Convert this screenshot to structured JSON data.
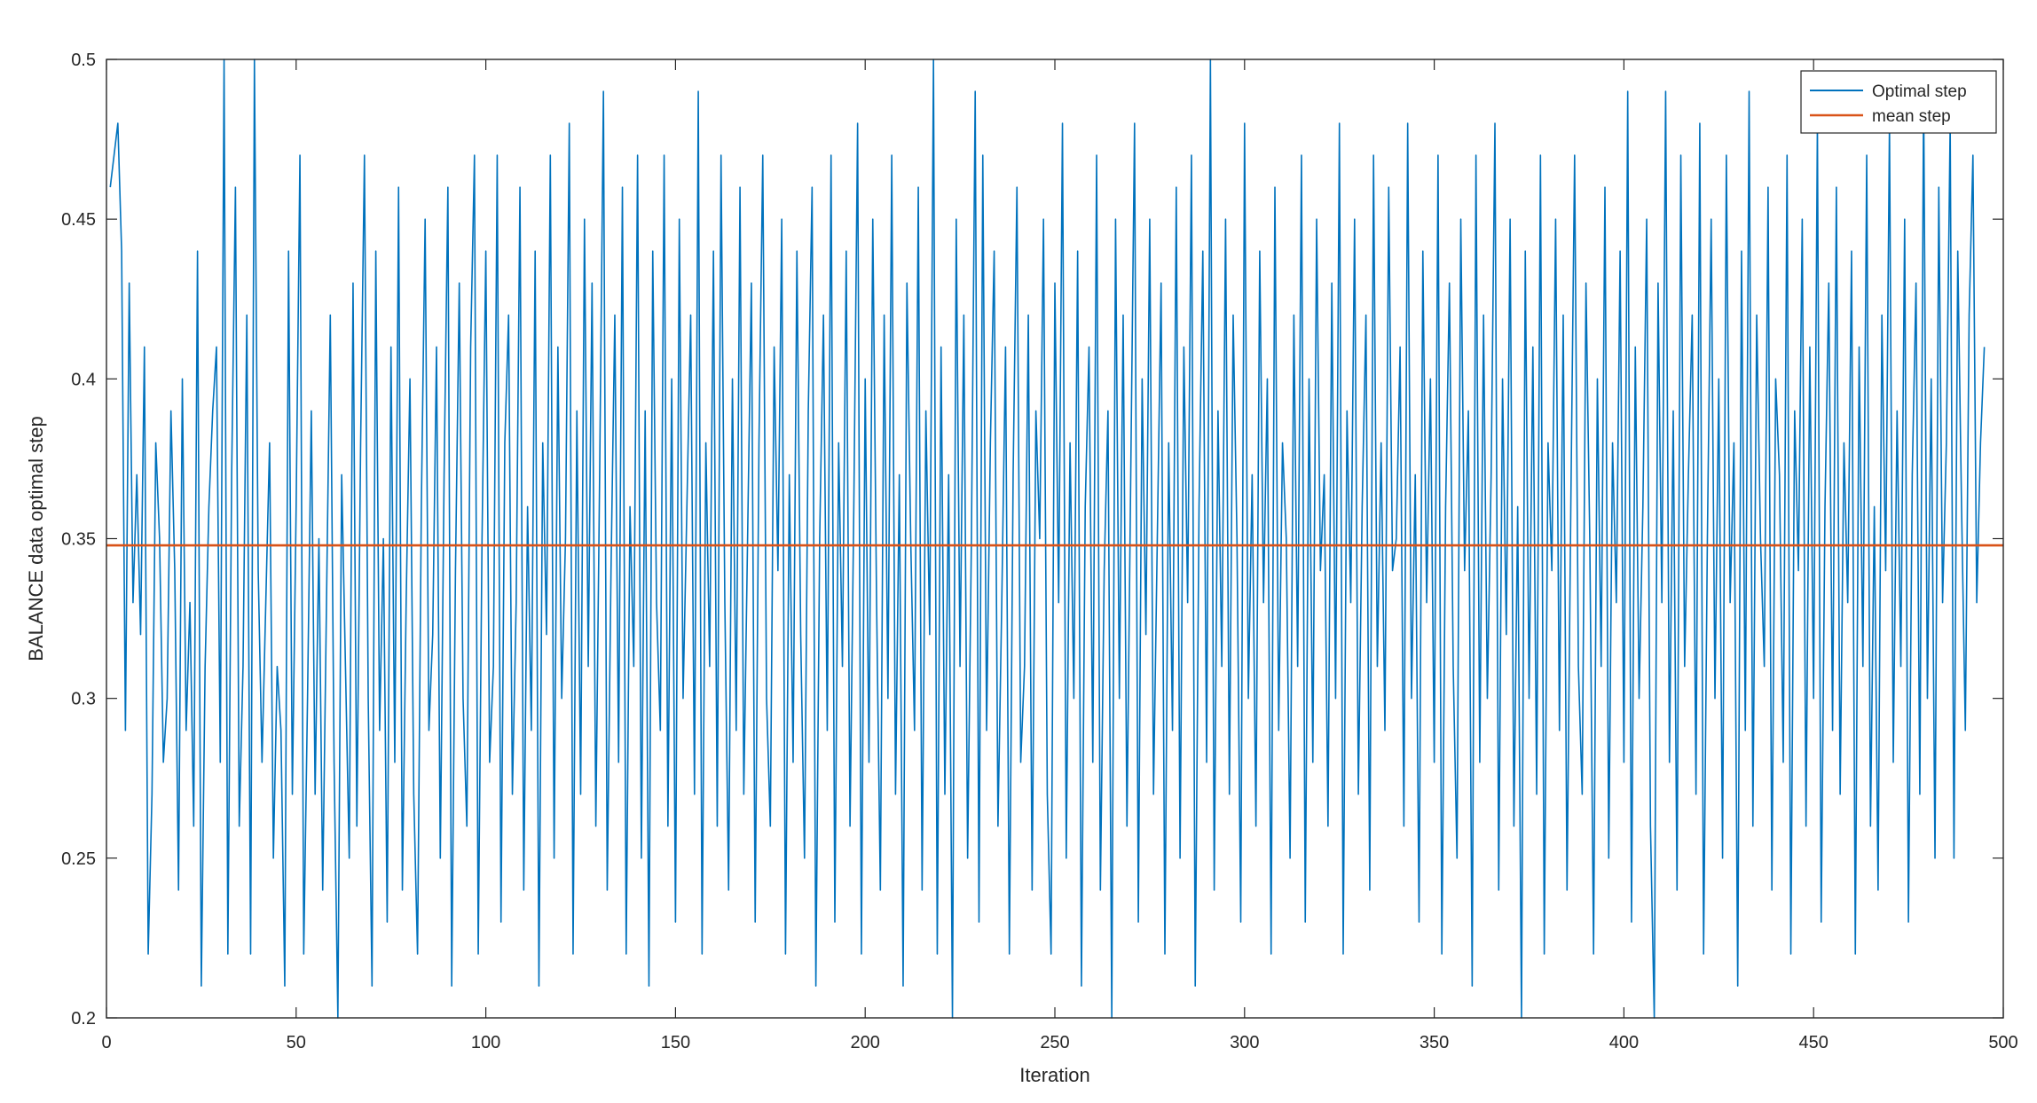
{
  "chart_data": {
    "type": "line",
    "title": "",
    "xlabel": "Iteration",
    "ylabel": "BALANCE data optimal step",
    "xlim": [
      0,
      500
    ],
    "ylim": [
      0.2,
      0.5
    ],
    "xticks": [
      0,
      50,
      100,
      150,
      200,
      250,
      300,
      350,
      400,
      450,
      500
    ],
    "yticks": [
      0.2,
      0.25,
      0.3,
      0.35,
      0.4,
      0.45,
      0.5
    ],
    "xtick_labels": [
      "0",
      "50",
      "100",
      "150",
      "200",
      "250",
      "300",
      "350",
      "400",
      "450",
      "500"
    ],
    "ytick_labels": [
      "0.2",
      "0.25",
      "0.3",
      "0.35",
      "0.4",
      "0.45",
      "0.5"
    ],
    "grid": false,
    "legend_position": "top-right",
    "series": [
      {
        "name": "Optimal step",
        "color": "#0072BD",
        "x_start": 1,
        "x_step": 1,
        "values": [
          0.46,
          0.47,
          0.48,
          0.44,
          0.29,
          0.43,
          0.33,
          0.37,
          0.32,
          0.41,
          0.22,
          0.27,
          0.38,
          0.35,
          0.28,
          0.3,
          0.39,
          0.34,
          0.24,
          0.4,
          0.29,
          0.33,
          0.26,
          0.44,
          0.21,
          0.31,
          0.36,
          0.39,
          0.41,
          0.28,
          0.5,
          0.22,
          0.37,
          0.46,
          0.26,
          0.31,
          0.42,
          0.22,
          0.5,
          0.34,
          0.28,
          0.33,
          0.38,
          0.25,
          0.31,
          0.29,
          0.21,
          0.44,
          0.27,
          0.36,
          0.47,
          0.22,
          0.3,
          0.39,
          0.27,
          0.35,
          0.24,
          0.33,
          0.42,
          0.28,
          0.2,
          0.37,
          0.31,
          0.25,
          0.43,
          0.26,
          0.38,
          0.47,
          0.3,
          0.21,
          0.44,
          0.29,
          0.35,
          0.23,
          0.41,
          0.28,
          0.46,
          0.24,
          0.33,
          0.4,
          0.27,
          0.22,
          0.36,
          0.45,
          0.29,
          0.32,
          0.41,
          0.25,
          0.37,
          0.46,
          0.21,
          0.34,
          0.43,
          0.3,
          0.26,
          0.41,
          0.47,
          0.22,
          0.35,
          0.44,
          0.28,
          0.31,
          0.47,
          0.23,
          0.38,
          0.42,
          0.27,
          0.33,
          0.46,
          0.24,
          0.36,
          0.29,
          0.44,
          0.21,
          0.38,
          0.32,
          0.47,
          0.25,
          0.41,
          0.3,
          0.35,
          0.48,
          0.22,
          0.39,
          0.27,
          0.45,
          0.31,
          0.43,
          0.26,
          0.37,
          0.49,
          0.24,
          0.34,
          0.42,
          0.28,
          0.46,
          0.22,
          0.36,
          0.31,
          0.47,
          0.25,
          0.39,
          0.21,
          0.44,
          0.33,
          0.29,
          0.47,
          0.26,
          0.4,
          0.23,
          0.45,
          0.3,
          0.36,
          0.42,
          0.27,
          0.49,
          0.22,
          0.38,
          0.31,
          0.44,
          0.26,
          0.47,
          0.33,
          0.24,
          0.4,
          0.29,
          0.46,
          0.27,
          0.35,
          0.43,
          0.23,
          0.38,
          0.47,
          0.3,
          0.26,
          0.41,
          0.34,
          0.45,
          0.22,
          0.37,
          0.28,
          0.44,
          0.32,
          0.25,
          0.39,
          0.46,
          0.21,
          0.35,
          0.42,
          0.29,
          0.47,
          0.23,
          0.38,
          0.31,
          0.44,
          0.26,
          0.36,
          0.48,
          0.22,
          0.4,
          0.28,
          0.45,
          0.33,
          0.24,
          0.42,
          0.3,
          0.47,
          0.27,
          0.37,
          0.21,
          0.43,
          0.35,
          0.29,
          0.46,
          0.24,
          0.39,
          0.32,
          0.5,
          0.22,
          0.41,
          0.27,
          0.37,
          0.2,
          0.45,
          0.31,
          0.42,
          0.25,
          0.35,
          0.49,
          0.23,
          0.47,
          0.29,
          0.38,
          0.44,
          0.26,
          0.33,
          0.41,
          0.22,
          0.37,
          0.46,
          0.28,
          0.31,
          0.42,
          0.24,
          0.39,
          0.35,
          0.45,
          0.27,
          0.22,
          0.43,
          0.33,
          0.48,
          0.25,
          0.38,
          0.3,
          0.44,
          0.21,
          0.36,
          0.41,
          0.28,
          0.47,
          0.24,
          0.34,
          0.39,
          0.2,
          0.45,
          0.3,
          0.42,
          0.26,
          0.37,
          0.48,
          0.23,
          0.4,
          0.32,
          0.45,
          0.27,
          0.35,
          0.43,
          0.22,
          0.38,
          0.29,
          0.46,
          0.25,
          0.41,
          0.33,
          0.47,
          0.21,
          0.36,
          0.44,
          0.28,
          0.5,
          0.24,
          0.39,
          0.31,
          0.45,
          0.27,
          0.42,
          0.35,
          0.23,
          0.48,
          0.3,
          0.37,
          0.26,
          0.44,
          0.33,
          0.4,
          0.22,
          0.46,
          0.29,
          0.38,
          0.35,
          0.25,
          0.42,
          0.31,
          0.47,
          0.23,
          0.4,
          0.28,
          0.45,
          0.34,
          0.37,
          0.26,
          0.43,
          0.3,
          0.48,
          0.22,
          0.39,
          0.33,
          0.45,
          0.27,
          0.36,
          0.42,
          0.24,
          0.47,
          0.31,
          0.38,
          0.29,
          0.46,
          0.34,
          0.35,
          0.41,
          0.26,
          0.48,
          0.3,
          0.37,
          0.23,
          0.44,
          0.33,
          0.4,
          0.28,
          0.47,
          0.22,
          0.36,
          0.43,
          0.31,
          0.25,
          0.45,
          0.34,
          0.39,
          0.21,
          0.47,
          0.28,
          0.42,
          0.3,
          0.37,
          0.48,
          0.24,
          0.4,
          0.32,
          0.45,
          0.26,
          0.36,
          0.2,
          0.44,
          0.3,
          0.41,
          0.27,
          0.47,
          0.22,
          0.38,
          0.34,
          0.45,
          0.29,
          0.42,
          0.24,
          0.36,
          0.47,
          0.31,
          0.27,
          0.43,
          0.35,
          0.22,
          0.4,
          0.31,
          0.46,
          0.25,
          0.38,
          0.33,
          0.44,
          0.28,
          0.49,
          0.23,
          0.41,
          0.3,
          0.36,
          0.45,
          0.26,
          0.2,
          0.43,
          0.33,
          0.49,
          0.28,
          0.39,
          0.24,
          0.47,
          0.31,
          0.37,
          0.42,
          0.27,
          0.48,
          0.22,
          0.35,
          0.45,
          0.3,
          0.4,
          0.25,
          0.47,
          0.33,
          0.38,
          0.21,
          0.44,
          0.29,
          0.49,
          0.26,
          0.42,
          0.35,
          0.31,
          0.46,
          0.24,
          0.4,
          0.37,
          0.28,
          0.47,
          0.22,
          0.39,
          0.34,
          0.45,
          0.26,
          0.41,
          0.3,
          0.48,
          0.23,
          0.36,
          0.43,
          0.29,
          0.46,
          0.27,
          0.38,
          0.33,
          0.44,
          0.22,
          0.41,
          0.31,
          0.47,
          0.26,
          0.36,
          0.24,
          0.42,
          0.34,
          0.48,
          0.28,
          0.39,
          0.31,
          0.45,
          0.23,
          0.37,
          0.43,
          0.27,
          0.49,
          0.3,
          0.4,
          0.25,
          0.46,
          0.33,
          0.38,
          0.48,
          0.25,
          0.44,
          0.36,
          0.29,
          0.42,
          0.47,
          0.33,
          0.38,
          0.41
        ]
      },
      {
        "name": "mean step",
        "color": "#D95319",
        "constant": 0.3479
      }
    ]
  }
}
